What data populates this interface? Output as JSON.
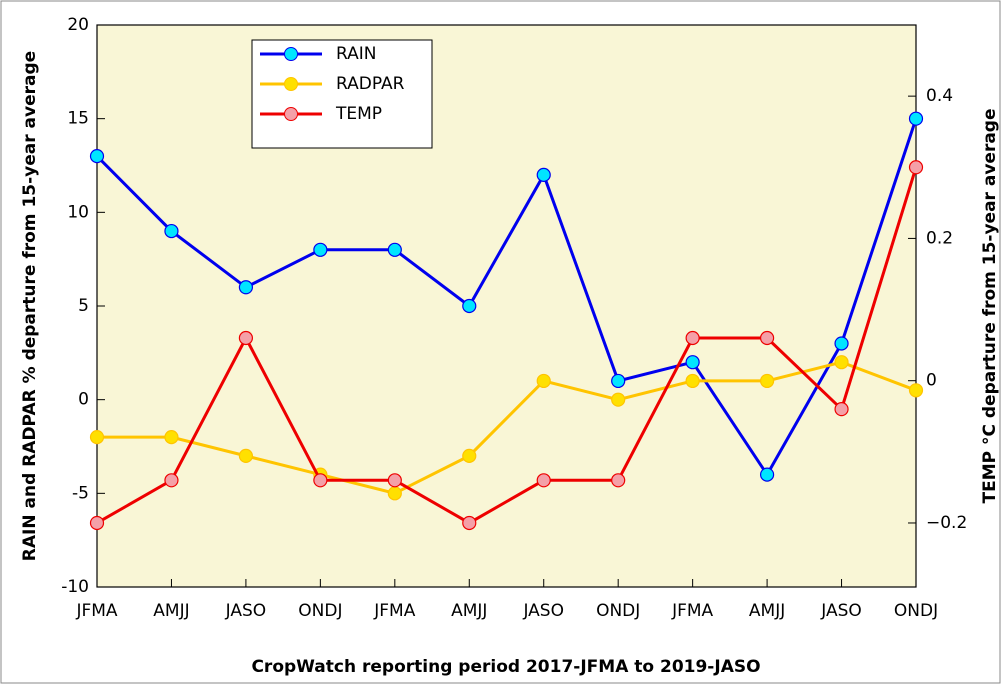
{
  "chart_data": {
    "type": "line",
    "xlabel": "CropWatch reporting period 2017-JFMA to 2019-JASO",
    "ylabel": "RAIN and RADPAR % departure from 15-year average",
    "y2label": "TEMP °C departure from 15-year average",
    "categories": [
      "JFMA",
      "AMJJ",
      "JASO",
      "ONDJ",
      "JFMA",
      "AMJJ",
      "JASO",
      "ONDJ",
      "JFMA",
      "AMJJ",
      "JASO",
      "ONDJ"
    ],
    "series": [
      {
        "name": "RAIN",
        "color": "#0000ee",
        "marker_color": "#00e5ff",
        "values": [
          13,
          9,
          6,
          8,
          8,
          5,
          12,
          1,
          2,
          -4,
          3,
          15
        ]
      },
      {
        "name": "RADPAR",
        "color": "#ffc400",
        "marker_color": "#ffe000",
        "values": [
          -2,
          -2,
          -3,
          -4,
          -5,
          -3,
          1,
          0,
          1,
          1,
          2,
          0.5
        ]
      },
      {
        "name": "TEMP",
        "color": "#ee0000",
        "marker_color": "#f4a0a8",
        "axis": "y2",
        "values": [
          -0.2,
          -0.14,
          0.06,
          -0.14,
          -0.14,
          -0.2,
          -0.14,
          -0.14,
          0.06,
          0.06,
          -0.04,
          0.3
        ]
      }
    ],
    "ylim": [
      -10,
      20
    ],
    "yticks": [
      -10,
      -5,
      0,
      5,
      10,
      15,
      20
    ],
    "y2lim": [
      -0.29,
      0.5
    ],
    "y2ticks": [
      {
        "value": -0.2,
        "label": "−0.2"
      },
      0,
      0.2,
      0.4
    ],
    "background": "#f9f6d6"
  }
}
